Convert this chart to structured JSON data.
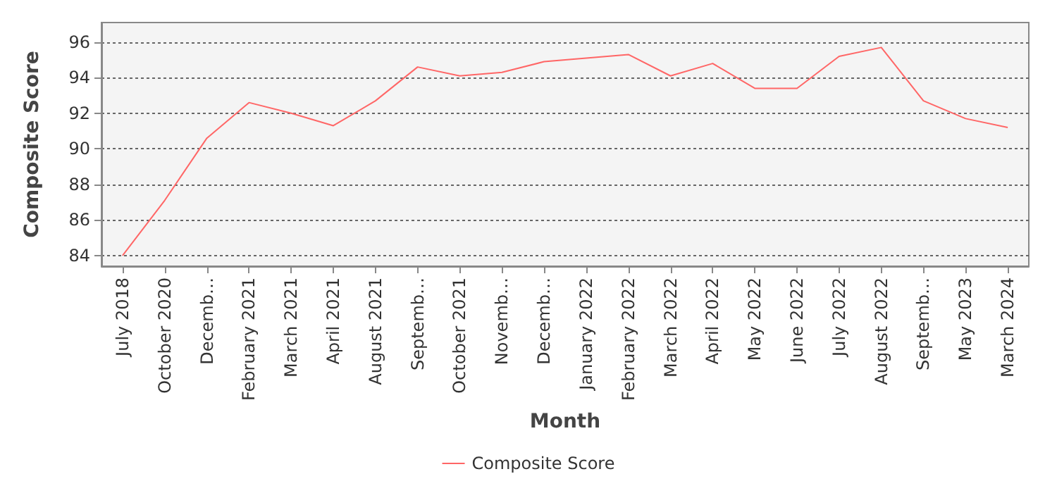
{
  "chart_data": {
    "type": "line",
    "categories": [
      "July 2018",
      "October 2020",
      "Decemb…",
      "February 2021",
      "March 2021",
      "April 2021",
      "August 2021",
      "Septemb…",
      "October 2021",
      "Novemb…",
      "Decemb…",
      "January 2022",
      "February 2022",
      "March 2022",
      "April 2022",
      "May 2022",
      "June 2022",
      "July 2022",
      "August 2022",
      "Septemb…",
      "May 2023",
      "March 2024"
    ],
    "series": [
      {
        "name": "Composite Score",
        "color": "#ff6666",
        "values": [
          84.0,
          87.1,
          90.6,
          92.6,
          92.0,
          91.3,
          92.7,
          94.6,
          94.1,
          94.3,
          94.9,
          95.1,
          95.3,
          94.1,
          94.8,
          93.4,
          93.4,
          95.2,
          95.7,
          92.7,
          91.7,
          91.2
        ]
      }
    ],
    "xlabel": "Month",
    "ylabel": "Composite Score",
    "ylim": [
      83.4,
      97.1
    ],
    "yticks": [
      84,
      86,
      88,
      90,
      92,
      94,
      96
    ],
    "grid": "y",
    "legend": "bottom",
    "marker": "none",
    "line_style": "solid"
  }
}
